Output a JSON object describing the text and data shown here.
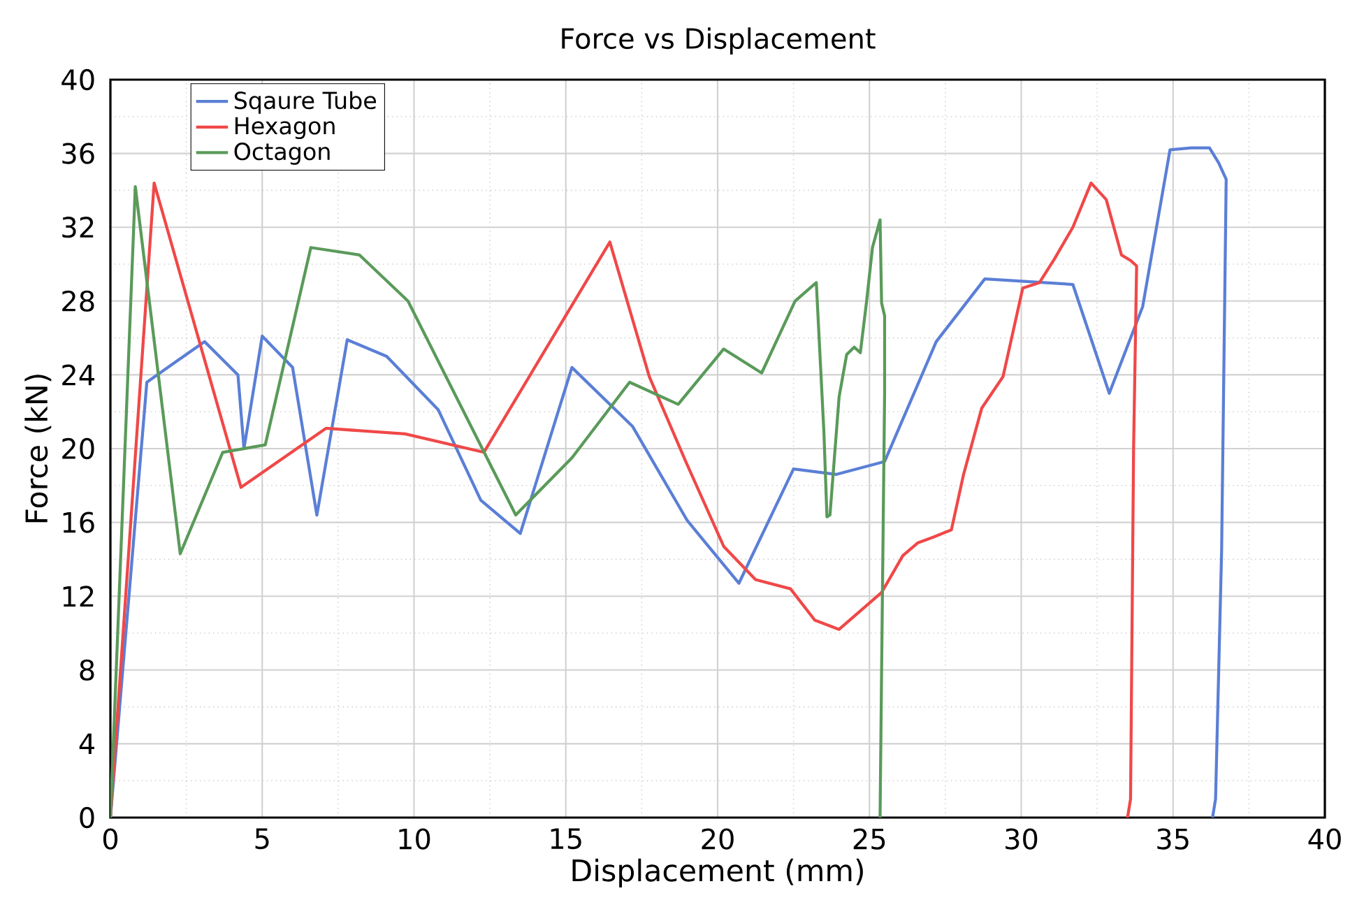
{
  "chart_data": {
    "type": "line",
    "title": "Force vs Displacement",
    "xlabel": "Displacement (mm)",
    "ylabel": "Force (kN)",
    "xlim": [
      0,
      40
    ],
    "ylim": [
      0,
      40
    ],
    "xticks": [
      0,
      5,
      10,
      15,
      20,
      25,
      30,
      35,
      40
    ],
    "yticks": [
      0,
      4,
      8,
      12,
      16,
      20,
      24,
      28,
      32,
      36,
      40
    ],
    "grid": true,
    "legend": "top left",
    "marker": "none",
    "line_style": "solid",
    "series": [
      {
        "name": "Sqaure Tube",
        "color": "#5b7fd6",
        "x": [
          0,
          1.2,
          3.1,
          4.2,
          4.4,
          5.0,
          6.0,
          6.8,
          7.8,
          9.1,
          10.8,
          12.2,
          13.5,
          15.2,
          17.2,
          19.0,
          20.7,
          22.5,
          23.9,
          25.5,
          27.2,
          28.8,
          31.7,
          32.9,
          34.0,
          34.9,
          35.6,
          36.2,
          36.5,
          36.75,
          36.6,
          36.4,
          36.3
        ],
        "values": [
          0,
          23.6,
          25.8,
          24.0,
          20.0,
          26.1,
          24.4,
          16.4,
          25.9,
          25.0,
          22.1,
          17.2,
          15.4,
          24.4,
          21.2,
          16.1,
          12.7,
          18.9,
          18.6,
          19.3,
          25.8,
          29.2,
          28.9,
          23.0,
          27.7,
          36.2,
          36.3,
          36.3,
          35.5,
          34.6,
          14.5,
          1.0,
          0
        ]
      },
      {
        "name": "Hexagon",
        "color": "#f04848",
        "x": [
          0,
          1.44,
          4.3,
          7.1,
          9.7,
          12.3,
          16.45,
          17.75,
          18.95,
          20.2,
          21.25,
          22.4,
          23.2,
          24.0,
          25.4,
          26.1,
          26.6,
          27.1,
          27.7,
          28.1,
          28.7,
          29.4,
          30.05,
          30.6,
          31.1,
          31.7,
          32.3,
          32.8,
          33.3,
          33.6,
          33.8,
          33.7,
          33.6,
          33.5
        ],
        "values": [
          0,
          34.4,
          17.9,
          21.1,
          20.8,
          19.8,
          31.2,
          23.9,
          19.3,
          14.7,
          12.9,
          12.4,
          10.7,
          10.2,
          12.2,
          14.2,
          14.9,
          15.2,
          15.6,
          18.6,
          22.2,
          23.9,
          28.7,
          29.0,
          30.3,
          32.0,
          34.4,
          33.5,
          30.5,
          30.2,
          29.9,
          20.0,
          1.0,
          0
        ]
      },
      {
        "name": "Octagon",
        "color": "#5a9a5a",
        "x": [
          0,
          0.82,
          2.3,
          3.7,
          5.1,
          6.6,
          8.2,
          9.8,
          13.35,
          15.2,
          17.1,
          18.7,
          20.2,
          21.45,
          22.55,
          23.25,
          23.5,
          23.6,
          23.7,
          24.0,
          24.25,
          24.5,
          24.7,
          24.9,
          25.1,
          25.35,
          25.4,
          25.5,
          25.5,
          25.4,
          25.35
        ],
        "values": [
          0,
          34.2,
          14.3,
          19.8,
          20.2,
          30.9,
          30.5,
          28.0,
          16.4,
          19.5,
          23.6,
          22.4,
          25.4,
          24.1,
          28.0,
          29.0,
          20.9,
          16.3,
          16.4,
          22.8,
          25.1,
          25.5,
          25.2,
          27.9,
          30.9,
          32.4,
          27.9,
          27.2,
          23.0,
          7.9,
          0
        ]
      }
    ]
  }
}
